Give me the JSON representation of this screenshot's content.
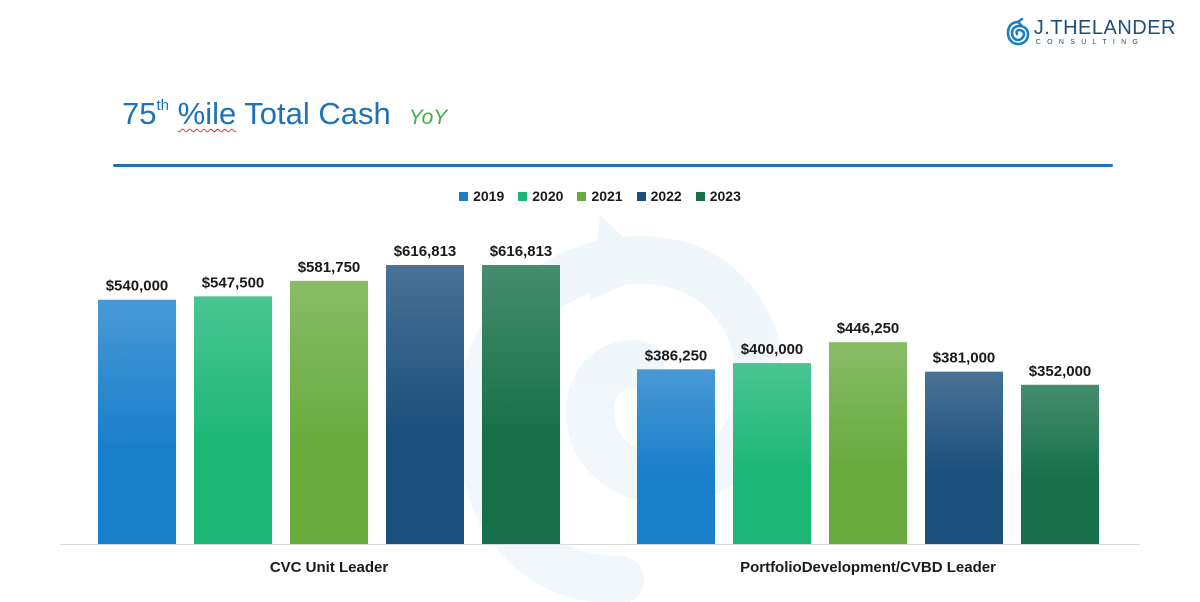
{
  "logo": {
    "name": "J.THELANDER",
    "sub": "CONSULTING",
    "color": "#1f4e79"
  },
  "title": {
    "prefix": "75",
    "sup": "th",
    "squiggle": "%ile",
    "rest": "Total Cash",
    "subtitle": "YoY",
    "title_color": "#1d72b8",
    "subtitle_color": "#3fae49"
  },
  "chart_data": {
    "type": "bar",
    "title": "75th %ile Total Cash YoY",
    "categories": [
      "CVC Unit Leader",
      "PortfolioDevelopment/CVBD Leader"
    ],
    "series": [
      {
        "name": "2019",
        "values": [
          540000,
          386250
        ],
        "labels": [
          "$540,000",
          "$386,250"
        ],
        "color": "#1a7fcb"
      },
      {
        "name": "2020",
        "values": [
          547500,
          400000
        ],
        "labels": [
          "$547,500",
          "$400,000"
        ],
        "color": "#1cb677"
      },
      {
        "name": "2021",
        "values": [
          581750,
          446250
        ],
        "labels": [
          "$581,750",
          "$446,250"
        ],
        "color": "#6aab40"
      },
      {
        "name": "2022",
        "values": [
          616813,
          381000
        ],
        "labels": [
          "$616,813",
          "$381,000"
        ],
        "color": "#1b4f7c"
      },
      {
        "name": "2023",
        "values": [
          616813,
          352000
        ],
        "labels": [
          "$616,813",
          "$352,000"
        ],
        "color": "#17704a"
      }
    ],
    "ylim": [
      0,
      700000
    ],
    "xlabel": "",
    "ylabel": "",
    "legend": "top-center",
    "grid": false
  }
}
